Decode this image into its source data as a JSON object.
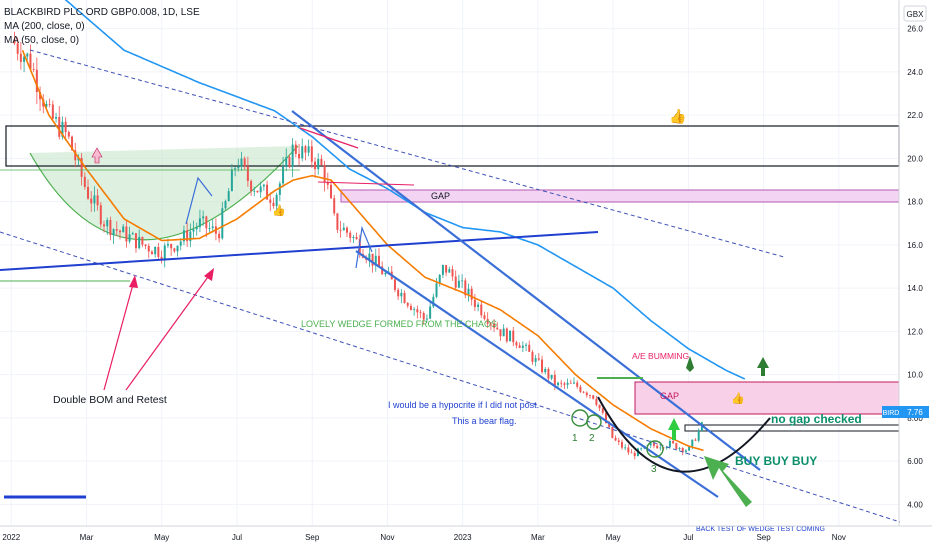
{
  "chart_data": {
    "type": "candlestick",
    "title": "BLACKBIRD PLC ORD GBP0.008, 1D, LSE",
    "indicators": [
      "MA (200, close, 0)",
      "MA (50, close, 0)"
    ],
    "currency": "GBX",
    "ticker": "BIRD",
    "last_price": "7.76",
    "ylim": [
      3,
      27
    ],
    "yticks": [
      "26.0",
      "24.0",
      "22.0",
      "20.0",
      "18.0",
      "16.0",
      "14.0",
      "12.0",
      "10.0",
      "8.00",
      "6.00",
      "4.00"
    ],
    "ytick_values": [
      26,
      24,
      22,
      20,
      18,
      16,
      14,
      12,
      10,
      8,
      6,
      4
    ],
    "xticks": [
      "2022",
      "Mar",
      "May",
      "Jul",
      "Sep",
      "Nov",
      "2023",
      "Mar",
      "May",
      "Jul",
      "Sep",
      "Nov"
    ],
    "xtick_months": [
      0,
      2,
      4,
      6,
      8,
      10,
      12,
      14,
      16,
      18,
      20,
      22
    ],
    "xlim_months": [
      -0.3,
      23.6
    ],
    "colors": {
      "up": "#26a69a",
      "down": "#ef5350",
      "ma200": "#2196f3",
      "ma50": "#f57c00",
      "trend": "#1e3fcf"
    },
    "close_anchors": [
      [
        0,
        25.5
      ],
      [
        0.5,
        24.5
      ],
      [
        1,
        22
      ],
      [
        1.5,
        21
      ],
      [
        2,
        18.5
      ],
      [
        2.5,
        17
      ],
      [
        3,
        16.5
      ],
      [
        3.5,
        16
      ],
      [
        4,
        15.7
      ],
      [
        4.5,
        16.2
      ],
      [
        5,
        17
      ],
      [
        5.5,
        16.5
      ],
      [
        6,
        20
      ],
      [
        6.3,
        19
      ],
      [
        6.6,
        18.5
      ],
      [
        7,
        18.2
      ],
      [
        7.5,
        20.5
      ],
      [
        8,
        20
      ],
      [
        8.3,
        19.5
      ],
      [
        8.6,
        17
      ],
      [
        9,
        16.5
      ],
      [
        9.5,
        15.5
      ],
      [
        10,
        14.5
      ],
      [
        10.5,
        13.5
      ],
      [
        11,
        12.5
      ],
      [
        11.5,
        15
      ],
      [
        12,
        14
      ],
      [
        12.5,
        13
      ],
      [
        13,
        12
      ],
      [
        13.5,
        11.5
      ],
      [
        14,
        10.5
      ],
      [
        14.5,
        9.5
      ],
      [
        15,
        9.5
      ],
      [
        15.5,
        9
      ],
      [
        16,
        7
      ],
      [
        16.5,
        6.3
      ],
      [
        17,
        6.7
      ],
      [
        17.5,
        6.8
      ],
      [
        18,
        6.5
      ],
      [
        18.4,
        7.76
      ]
    ],
    "ma50_anchors": [
      [
        0.3,
        25
      ],
      [
        1,
        22
      ],
      [
        2,
        19.5
      ],
      [
        3,
        17.2
      ],
      [
        4,
        16.2
      ],
      [
        5,
        16.3
      ],
      [
        6,
        17.2
      ],
      [
        7,
        18.5
      ],
      [
        7.5,
        19
      ],
      [
        8,
        19.2
      ],
      [
        8.5,
        19
      ],
      [
        9,
        18
      ],
      [
        10,
        16
      ],
      [
        11,
        14.5
      ],
      [
        12,
        13.8
      ],
      [
        13,
        13
      ],
      [
        14,
        11.8
      ],
      [
        15,
        10
      ],
      [
        16,
        8.6
      ],
      [
        17,
        7.5
      ],
      [
        18,
        6.7
      ],
      [
        18.4,
        6.5
      ]
    ],
    "ma200_anchors": [
      [
        1,
        28
      ],
      [
        3,
        25
      ],
      [
        5,
        23.5
      ],
      [
        7,
        22.2
      ],
      [
        8,
        21
      ],
      [
        9,
        19.5
      ],
      [
        10,
        18.6
      ],
      [
        11,
        17.5
      ],
      [
        12,
        16.8
      ],
      [
        13,
        16.6
      ],
      [
        14,
        16
      ],
      [
        15,
        15
      ],
      [
        16,
        14
      ],
      [
        17,
        12.5
      ],
      [
        18,
        11.2
      ],
      [
        19,
        10.2
      ],
      [
        19.5,
        9.8
      ]
    ],
    "annotations": {
      "gap_upper": "GAP",
      "gap_lower": "GAP",
      "wedge": "LOVELY WEDGE FORMED FROM THE CHAOS",
      "double_bom": "Double BOM and Retest",
      "hypocrite": "I would be a hypocrite if I did not  post.",
      "bear_flag": "This a bear flag.",
      "bumming": "A/E BUMMING",
      "no_gap": "no gap checked",
      "buy": "BUY BUY BUY",
      "label_1": "1",
      "label_2": "2",
      "label_3": "3",
      "bottom_text": "BACK TEST OF WEDGE TEST COMING"
    }
  }
}
